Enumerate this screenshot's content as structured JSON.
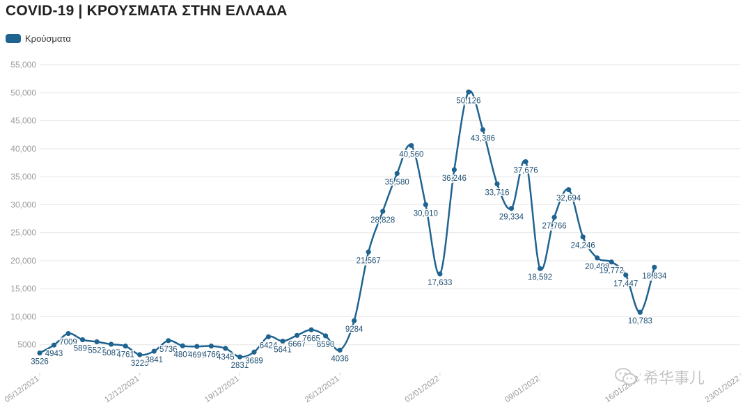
{
  "title": "COVID-19 | ΚΡΟΥΣΜΑΤΑ ΣΤΗΝ ΕΛΛΑΔΑ",
  "watermark": "希华事儿",
  "colors": {
    "series": "#1f6390",
    "grid": "#e6e6e6",
    "axis_text": "#999999",
    "label_text": "#1f4f72"
  },
  "chart_data": {
    "type": "line",
    "title": "COVID-19 | ΚΡΟΥΣΜΑΤΑ ΣΤΗΝ ΕΛΛΑΔΑ",
    "legend_position": "top-left",
    "grid": true,
    "xlabel": "",
    "ylabel": "",
    "ylim": [
      0,
      55000
    ],
    "xlim": [
      "2021-12-05",
      "2022-01-23"
    ],
    "yticks": [
      {
        "value": 5000,
        "label": "5000"
      },
      {
        "value": 10000,
        "label": "10,000"
      },
      {
        "value": 15000,
        "label": "15,000"
      },
      {
        "value": 20000,
        "label": "20,000"
      },
      {
        "value": 25000,
        "label": "25,000"
      },
      {
        "value": 30000,
        "label": "30,000"
      },
      {
        "value": 35000,
        "label": "35,000"
      },
      {
        "value": 40000,
        "label": "40,000"
      },
      {
        "value": 45000,
        "label": "45,000"
      },
      {
        "value": 50000,
        "label": "50,000"
      },
      {
        "value": 55000,
        "label": "55,000"
      }
    ],
    "xticks": [
      {
        "date": "2021-12-05",
        "label": "05/12/2021"
      },
      {
        "date": "2021-12-12",
        "label": "12/12/2021"
      },
      {
        "date": "2021-12-19",
        "label": "19/12/2021"
      },
      {
        "date": "2021-12-26",
        "label": "26/12/2021"
      },
      {
        "date": "2022-01-02",
        "label": "02/01/2022"
      },
      {
        "date": "2022-01-09",
        "label": "09/01/2022"
      },
      {
        "date": "2022-01-16",
        "label": "16/01/2022"
      },
      {
        "date": "2022-01-23",
        "label": "23/01/2022"
      }
    ],
    "series": [
      {
        "name": "Κρούσματα",
        "points": [
          {
            "x": "2021-12-05",
            "y": 3526,
            "label": "3526",
            "pos": "below"
          },
          {
            "x": "2021-12-06",
            "y": 4943,
            "label": "4943",
            "pos": "below"
          },
          {
            "x": "2021-12-07",
            "y": 7009,
            "label": "7009",
            "pos": "below"
          },
          {
            "x": "2021-12-08",
            "y": 5895,
            "label": "5895",
            "pos": "below"
          },
          {
            "x": "2021-12-09",
            "y": 5523,
            "label": "5523",
            "pos": "below"
          },
          {
            "x": "2021-12-10",
            "y": 5087,
            "label": "5087",
            "pos": "below"
          },
          {
            "x": "2021-12-11",
            "y": 4761,
            "label": "4761",
            "pos": "below"
          },
          {
            "x": "2021-12-12",
            "y": 3225,
            "label": "3225",
            "pos": "below"
          },
          {
            "x": "2021-12-13",
            "y": 3841,
            "label": "3841",
            "pos": "below"
          },
          {
            "x": "2021-12-14",
            "y": 5736,
            "label": "5736",
            "pos": "below"
          },
          {
            "x": "2021-12-15",
            "y": 4801,
            "label": "4801",
            "pos": "below"
          },
          {
            "x": "2021-12-16",
            "y": 4696,
            "label": "4696",
            "pos": "below"
          },
          {
            "x": "2021-12-17",
            "y": 4766,
            "label": "4766",
            "pos": "below"
          },
          {
            "x": "2021-12-18",
            "y": 4345,
            "label": "4345",
            "pos": "below"
          },
          {
            "x": "2021-12-19",
            "y": 2831,
            "label": "2831",
            "pos": "below"
          },
          {
            "x": "2021-12-20",
            "y": 3689,
            "label": "3689",
            "pos": "below"
          },
          {
            "x": "2021-12-21",
            "y": 6424,
            "label": "6424",
            "pos": "below"
          },
          {
            "x": "2021-12-22",
            "y": 5641,
            "label": "5641",
            "pos": "below"
          },
          {
            "x": "2021-12-23",
            "y": 6667,
            "label": "6667",
            "pos": "below"
          },
          {
            "x": "2021-12-24",
            "y": 7665,
            "label": "7665",
            "pos": "below"
          },
          {
            "x": "2021-12-25",
            "y": 6590,
            "label": "6590",
            "pos": "below"
          },
          {
            "x": "2021-12-26",
            "y": 4036,
            "label": "4036",
            "pos": "below"
          },
          {
            "x": "2021-12-27",
            "y": 9284,
            "label": "9284",
            "pos": "below"
          },
          {
            "x": "2021-12-28",
            "y": 21567,
            "label": "21,567",
            "pos": "below"
          },
          {
            "x": "2021-12-29",
            "y": 28828,
            "label": "28,828",
            "pos": "below"
          },
          {
            "x": "2021-12-30",
            "y": 35580,
            "label": "35,580",
            "pos": "below"
          },
          {
            "x": "2021-12-31",
            "y": 40560,
            "label": "40,560",
            "pos": "below"
          },
          {
            "x": "2022-01-01",
            "y": 30010,
            "label": "30,010",
            "pos": "below"
          },
          {
            "x": "2022-01-02",
            "y": 17633,
            "label": "17,633",
            "pos": "below"
          },
          {
            "x": "2022-01-03",
            "y": 36246,
            "label": "36,246",
            "pos": "below"
          },
          {
            "x": "2022-01-04",
            "y": 50126,
            "label": "50,126",
            "pos": "below"
          },
          {
            "x": "2022-01-05",
            "y": 43386,
            "label": "43,386",
            "pos": "below"
          },
          {
            "x": "2022-01-06",
            "y": 33716,
            "label": "33,716",
            "pos": "below"
          },
          {
            "x": "2022-01-07",
            "y": 29334,
            "label": "29,334",
            "pos": "below"
          },
          {
            "x": "2022-01-08",
            "y": 37676,
            "label": "37,676",
            "pos": "below"
          },
          {
            "x": "2022-01-09",
            "y": 18592,
            "label": "18,592",
            "pos": "below"
          },
          {
            "x": "2022-01-10",
            "y": 27766,
            "label": "27,766",
            "pos": "below"
          },
          {
            "x": "2022-01-11",
            "y": 32694,
            "label": "32,694",
            "pos": "below"
          },
          {
            "x": "2022-01-12",
            "y": 24246,
            "label": "24,246",
            "pos": "below"
          },
          {
            "x": "2022-01-13",
            "y": 20498,
            "label": "20,498",
            "pos": "below"
          },
          {
            "x": "2022-01-14",
            "y": 19772,
            "label": "19,772",
            "pos": "below"
          },
          {
            "x": "2022-01-15",
            "y": 17447,
            "label": "17,447",
            "pos": "below"
          },
          {
            "x": "2022-01-16",
            "y": 10783,
            "label": "10,783",
            "pos": "below"
          },
          {
            "x": "2022-01-17",
            "y": 18834,
            "label": "18,834",
            "pos": "below"
          }
        ]
      }
    ]
  }
}
